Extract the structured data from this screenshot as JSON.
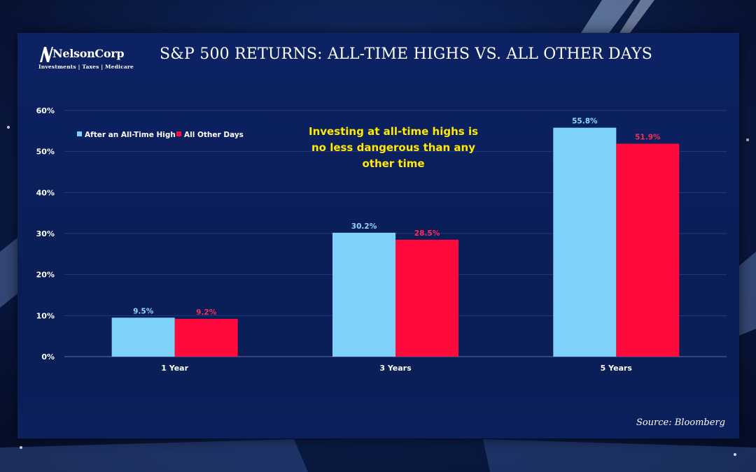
{
  "logo": {
    "name": "NelsonCorp",
    "tagline": "Investments | Taxes | Medicare"
  },
  "title": "S&P 500 RETURNS: ALL-TIME HIGHS VS. ALL OTHER DAYS",
  "source": "Source: Bloomberg",
  "colors": {
    "series_1": "#7dd1fb",
    "series_2": "#ff0a3c",
    "annotation": "#ffea00",
    "label_series_1": "#8fd8ff",
    "label_series_2": "#ff2a55"
  },
  "chart_data": {
    "type": "bar",
    "title": "S&P 500 RETURNS: ALL-TIME HIGHS VS. ALL OTHER DAYS",
    "categories": [
      "1 Year",
      "3 Years",
      "5 Years"
    ],
    "series": [
      {
        "name": "After an All-Time High",
        "values": [
          9.5,
          30.2,
          55.8
        ],
        "labels": [
          "9.5%",
          "30.2%",
          "55.8%"
        ]
      },
      {
        "name": "All Other Days",
        "values": [
          9.2,
          28.5,
          51.9
        ],
        "labels": [
          "9.2%",
          "28.5%",
          "51.9%"
        ]
      }
    ],
    "ylim": [
      0,
      60
    ],
    "y_ticks": [
      "0%",
      "10%",
      "20%",
      "30%",
      "40%",
      "50%",
      "60%"
    ],
    "y_tick_values": [
      0,
      10,
      20,
      30,
      40,
      50,
      60
    ],
    "grid": true,
    "legend_position": "top-left",
    "annotation_lines": [
      "Investing at all-time highs is",
      "no less dangerous than any",
      "other time"
    ]
  }
}
